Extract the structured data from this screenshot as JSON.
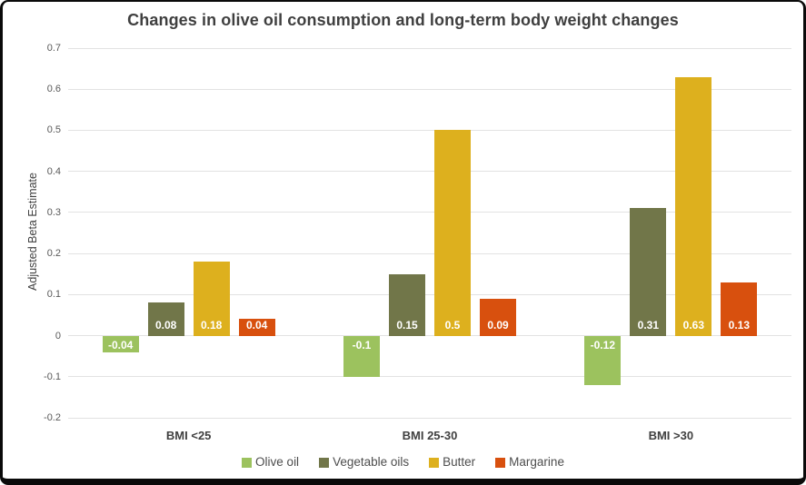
{
  "title": "Changes in olive oil consumption and long-term body weight changes",
  "chart_data": {
    "type": "bar",
    "title": "Changes in olive oil consumption and long-term body weight changes",
    "ylabel": "Adjusted Beta Estimate",
    "xlabel": "",
    "categories": [
      "BMI <25",
      "BMI 25-30",
      "BMI >30"
    ],
    "series": [
      {
        "name": "Olive oil",
        "color": "#9CC25E",
        "values": [
          -0.04,
          -0.1,
          -0.12
        ],
        "labels": [
          "-0.04",
          "-0.1",
          "-0.12"
        ]
      },
      {
        "name": "Vegetable oils",
        "color": "#717649",
        "values": [
          0.08,
          0.15,
          0.31
        ],
        "labels": [
          "0.08",
          "0.15",
          "0.31"
        ]
      },
      {
        "name": "Butter",
        "color": "#DDB01E",
        "values": [
          0.18,
          0.5,
          0.63
        ],
        "labels": [
          "0.18",
          "0.5",
          "0.63"
        ]
      },
      {
        "name": "Margarine",
        "color": "#D8500E",
        "values": [
          0.04,
          0.09,
          0.13
        ],
        "labels": [
          "0.04",
          "0.09",
          "0.13"
        ]
      }
    ],
    "ylim": [
      -0.2,
      0.7
    ],
    "yticks": [
      "0.7",
      "0.6",
      "0.5",
      "0.4",
      "0.3",
      "0.2",
      "0.1",
      "0",
      "-0.1",
      "-0.2"
    ],
    "grid": "horizontal",
    "legend_position": "bottom",
    "value_label_color": "#FFFFFF"
  }
}
